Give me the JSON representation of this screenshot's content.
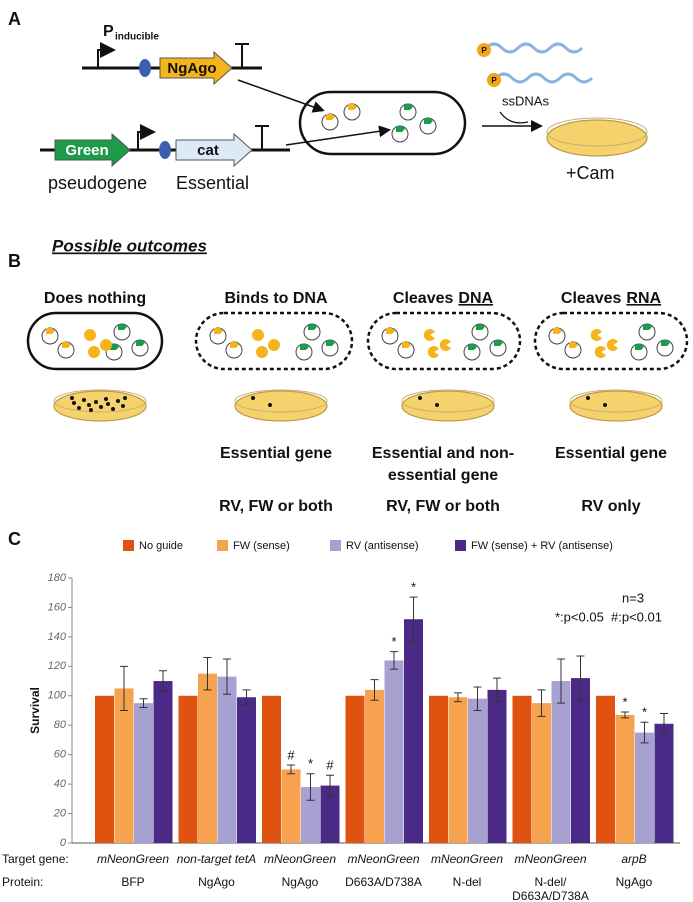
{
  "panel_a": {
    "label": "A",
    "promoter": "P",
    "promoter_subscript": "inducible",
    "ngago": "NgAgo",
    "green": "Green",
    "cat": "cat",
    "pseudogene": "pseudogene",
    "essential": "Essential",
    "phosphate": "P",
    "ssdnas": "ssDNAs",
    "cam": "+Cam"
  },
  "panel_b": {
    "label": "B",
    "heading": "Possible outcomes",
    "outcomes": [
      {
        "title": "Does nothing"
      },
      {
        "title": "Binds to DNA",
        "gene": [
          "Essential gene"
        ],
        "strand": "RV, FW or both"
      },
      {
        "title": "Cleaves",
        "underlined": "DNA",
        "gene": [
          "Essential and non-",
          "essential gene"
        ],
        "strand": "RV, FW or both"
      },
      {
        "title": "Cleaves",
        "underlined": "RNA",
        "gene": [
          "Essential gene"
        ],
        "strand": "RV only"
      }
    ]
  },
  "chart_data": {
    "type": "bar",
    "label": "C",
    "y_label": "Survival",
    "row_labels": [
      "Target gene:",
      "Protein:"
    ],
    "categories": [
      "mNeonGreen",
      "non-target tetA",
      "mNeonGreen",
      "mNeonGreen",
      "mNeonGreen",
      "mNeonGreen",
      "arpB"
    ],
    "proteins": [
      [
        "BFP"
      ],
      [
        "NgAgo"
      ],
      [
        "NgAgo"
      ],
      [
        "D663A/D738A"
      ],
      [
        "N-del"
      ],
      [
        "N-del/",
        "D663A/D738A"
      ],
      [
        "NgAgo"
      ]
    ],
    "series": [
      {
        "name": "No guide",
        "color": "#e0520f",
        "values": [
          100,
          100,
          100,
          100,
          100,
          100,
          100
        ]
      },
      {
        "name": "FW (sense)",
        "color": "#f7a24f",
        "values": [
          105,
          115,
          50,
          104,
          99,
          95,
          87
        ],
        "errors": [
          15,
          11,
          3,
          7,
          3,
          9,
          2
        ],
        "marks": [
          null,
          null,
          "#",
          null,
          null,
          null,
          "*"
        ]
      },
      {
        "name": "RV (antisense)",
        "color": "#a6a1d0",
        "values": [
          95,
          113,
          38,
          124,
          98,
          110,
          75
        ],
        "errors": [
          3,
          12,
          9,
          6,
          8,
          15,
          7
        ],
        "marks": [
          null,
          null,
          "*",
          "*",
          null,
          null,
          "*"
        ]
      },
      {
        "name": "FW (sense) + RV (antisense)",
        "color": "#4a2a86",
        "values": [
          110,
          99,
          39,
          152,
          104,
          112,
          81
        ],
        "errors": [
          7,
          5,
          7,
          15,
          8,
          15,
          7
        ],
        "marks": [
          null,
          null,
          "#",
          "*",
          null,
          null,
          null
        ]
      }
    ],
    "ylim": [
      0,
      180
    ],
    "yticks": [
      0,
      20,
      40,
      60,
      80,
      100,
      120,
      140,
      160,
      180
    ],
    "notes": [
      "n=3",
      "*:p<0.05  #:p<0.01"
    ]
  }
}
